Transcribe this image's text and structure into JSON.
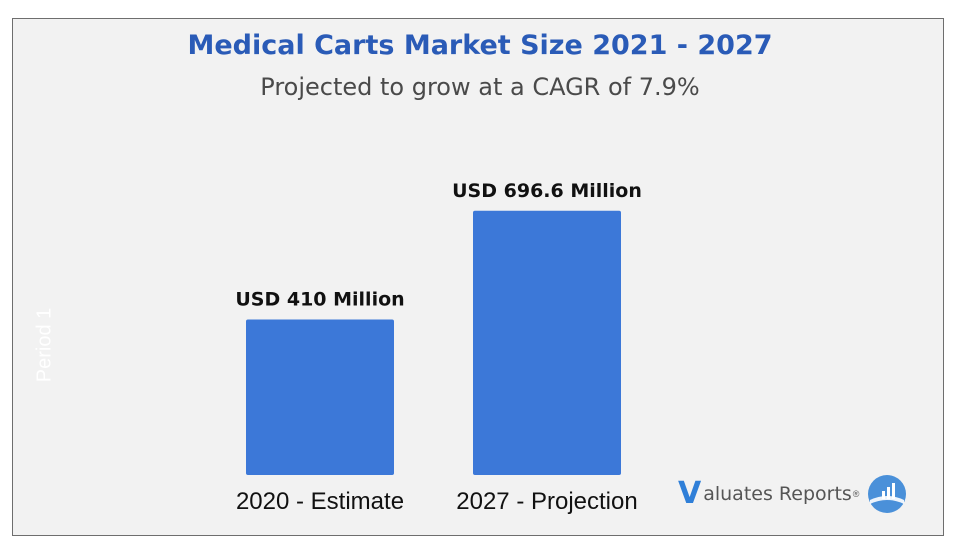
{
  "header": {
    "title": "Medical Carts Market Size 2021 - 2027",
    "subtitle": "Projected to grow at a CAGR of 7.9%"
  },
  "brand": {
    "logo_letter": "V",
    "name": "aluates Reports",
    "registered": "®",
    "icon": "bar-chart-globe-icon"
  },
  "colors": {
    "title": "#2a5bb7",
    "bar": "#3c78d8",
    "background": "#f2f2f2",
    "brand_accent": "#2f7fd8"
  },
  "chart_data": {
    "type": "bar",
    "title": "Medical Carts Market Size 2021 - 2027",
    "subtitle": "Projected to grow at a CAGR of 7.9%",
    "xlabel": "",
    "ylabel": "Period 1",
    "categories": [
      "2020 - Estimate",
      "2027 - Projection"
    ],
    "values": [
      410,
      696.6
    ],
    "data_labels": [
      "USD 410 Million",
      "USD 696.6 Million"
    ],
    "unit": "USD Million",
    "ylim": [
      0,
      870
    ],
    "grid": false,
    "legend": "none"
  }
}
